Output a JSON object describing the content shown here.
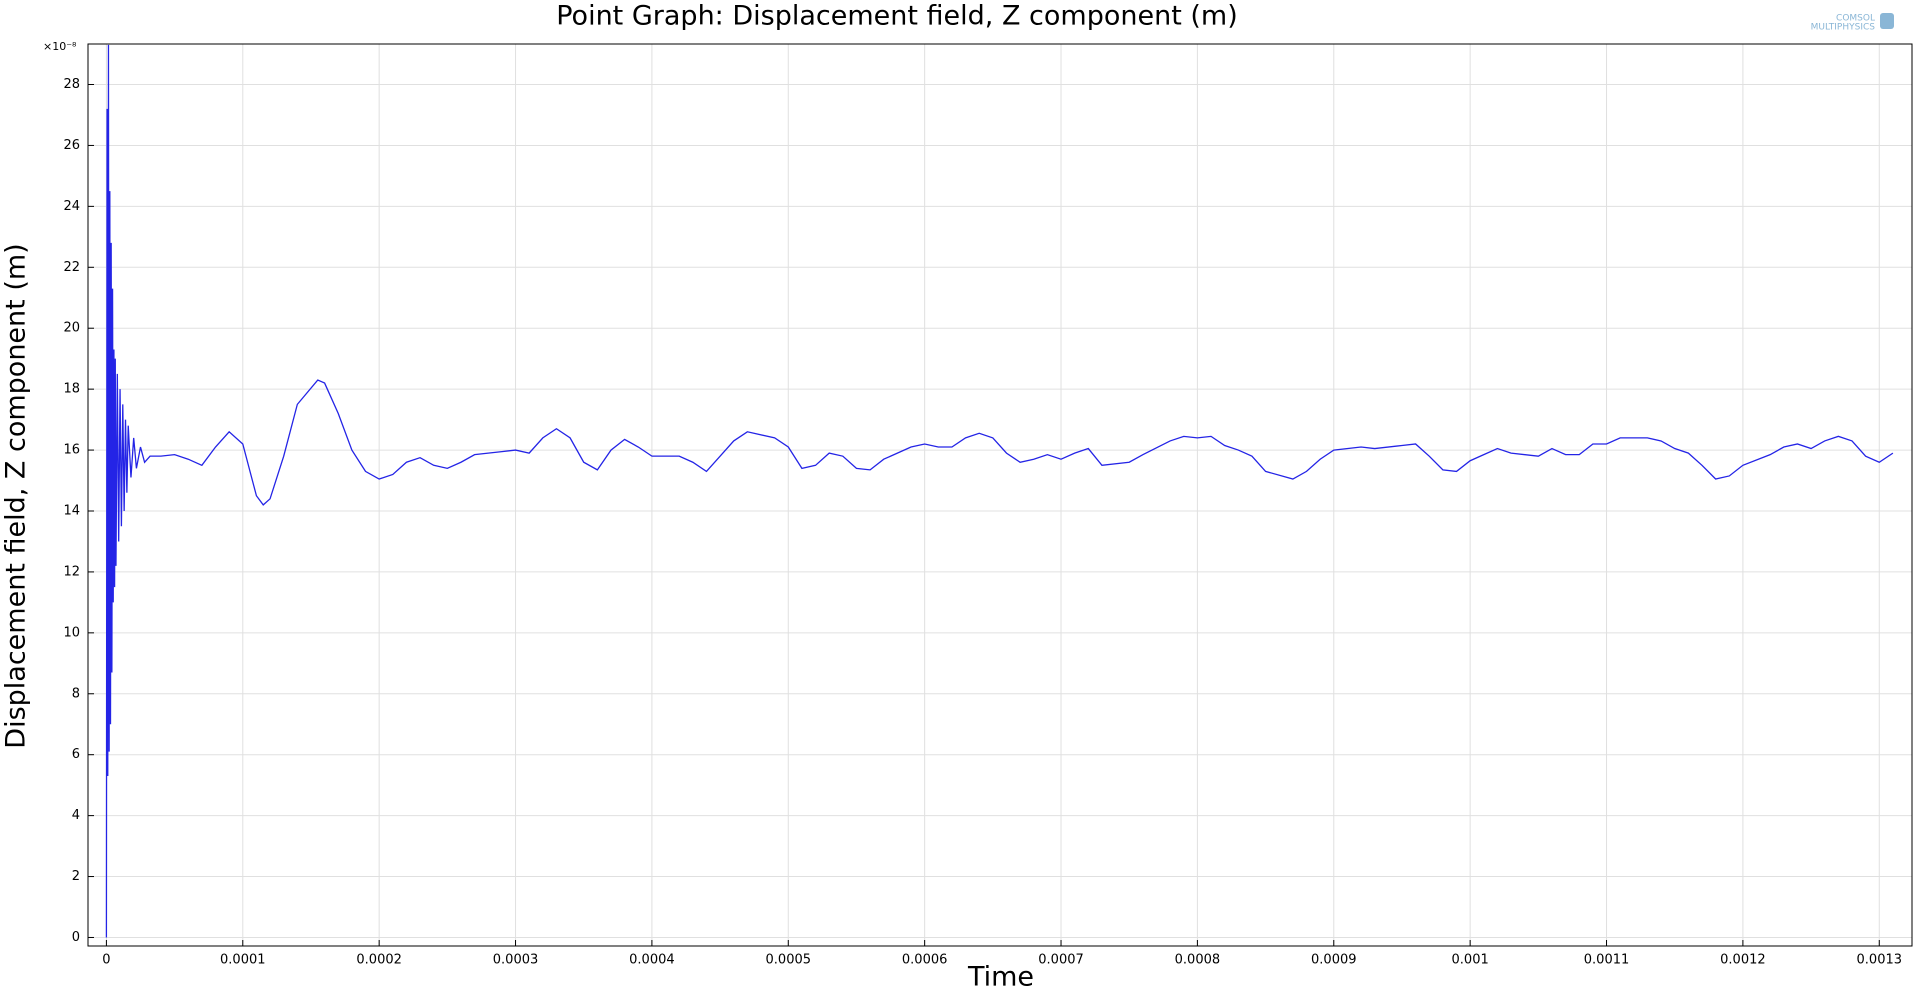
{
  "chart_data": {
    "type": "line",
    "title": "Point Graph: Displacement field, Z component (m)",
    "xlabel": "Time",
    "ylabel": "Displacement field, Z component (m)",
    "y_multiplier": "×10⁻⁸",
    "logo": [
      "COMSOL",
      "MULTIPHYSICS"
    ],
    "grid": true,
    "xlim": [
      -1.35e-05,
      0.001324
    ],
    "ylim": [
      -0.28,
      29.33
    ],
    "xticks": [
      0,
      0.0001,
      0.0002,
      0.0003,
      0.0004,
      0.0005,
      0.0006,
      0.0007,
      0.0008,
      0.0009,
      0.001,
      0.0011,
      0.0012,
      0.0013
    ],
    "yticks": [
      0,
      2,
      4,
      6,
      8,
      10,
      12,
      14,
      16,
      18,
      20,
      22,
      24,
      26,
      28
    ],
    "series": [
      {
        "color": "#2424e6",
        "x": [
          0,
          5e-07,
          1e-06,
          1.5e-06,
          2e-06,
          2.5e-06,
          3e-06,
          3.5e-06,
          4e-06,
          4.5e-06,
          5e-06,
          5.5e-06,
          6e-06,
          6.5e-06,
          7e-06,
          8e-06,
          9e-06,
          1e-05,
          1.1e-05,
          1.2e-05,
          1.3e-05,
          1.4e-05,
          1.5e-05,
          1.6e-05,
          1.8e-05,
          2e-05,
          2.2e-05,
          2.5e-05,
          2.8e-05,
          3.2e-05,
          4e-05,
          5e-05,
          6e-05,
          7e-05,
          8e-05,
          9e-05,
          0.0001,
          0.00011,
          0.000115,
          0.00012,
          0.00013,
          0.00014,
          0.000155,
          0.00016,
          0.00017,
          0.00018,
          0.00019,
          0.0002,
          0.00021,
          0.00022,
          0.00023,
          0.00024,
          0.00025,
          0.00026,
          0.00027,
          0.00029,
          0.0003,
          0.00031,
          0.00032,
          0.00033,
          0.00034,
          0.00035,
          0.00036,
          0.00037,
          0.00038,
          0.00039,
          0.0004,
          0.00042,
          0.00043,
          0.00044,
          0.00045,
          0.00046,
          0.00047,
          0.00049,
          0.0005,
          0.00051,
          0.00052,
          0.00053,
          0.00054,
          0.00055,
          0.00056,
          0.00057,
          0.00059,
          0.0006,
          0.00061,
          0.00062,
          0.00063,
          0.00064,
          0.00065,
          0.00066,
          0.00067,
          0.00068,
          0.00069,
          0.0007,
          0.00071,
          0.00072,
          0.00073,
          0.00075,
          0.00076,
          0.00078,
          0.00079,
          0.0008,
          0.00081,
          0.00082,
          0.00083,
          0.00084,
          0.00085,
          0.00087,
          0.00088,
          0.00089,
          0.0009,
          0.00092,
          0.00093,
          0.00095,
          0.00096,
          0.00097,
          0.00098,
          0.00099,
          0.001,
          0.00101,
          0.00102,
          0.00103,
          0.00105,
          0.00106,
          0.00107,
          0.00108,
          0.00109,
          0.0011,
          0.00111,
          0.00113,
          0.00114,
          0.00115,
          0.00116,
          0.00117,
          0.00118,
          0.00119,
          0.0012,
          0.00122,
          0.00123,
          0.00124,
          0.00125,
          0.00126,
          0.00127,
          0.00128,
          0.00129,
          0.0013,
          0.00131
        ],
        "values": [
          0,
          27.2,
          5.3,
          29.3,
          6.1,
          24.5,
          7,
          22.8,
          8.7,
          21.3,
          11,
          19.3,
          11.5,
          19,
          12.2,
          18.5,
          13,
          18,
          13.5,
          17.5,
          14,
          17,
          14.6,
          16.8,
          15.1,
          16.4,
          15.4,
          16.1,
          15.6,
          15.8,
          15.8,
          15.85,
          15.7,
          15.5,
          16.1,
          16.6,
          16.2,
          14.5,
          14.2,
          14.4,
          15.8,
          17.5,
          18.3,
          18.2,
          17.2,
          16,
          15.3,
          15.05,
          15.2,
          15.6,
          15.75,
          15.5,
          15.4,
          15.6,
          15.85,
          15.95,
          16,
          15.9,
          16.4,
          16.7,
          16.4,
          15.6,
          15.35,
          16,
          16.35,
          16.1,
          15.8,
          15.8,
          15.6,
          15.3,
          15.8,
          16.3,
          16.6,
          16.4,
          16.1,
          15.4,
          15.5,
          15.9,
          15.8,
          15.4,
          15.35,
          15.7,
          16.1,
          16.2,
          16.1,
          16.1,
          16.4,
          16.55,
          16.4,
          15.9,
          15.6,
          15.7,
          15.85,
          15.7,
          15.9,
          16.05,
          15.5,
          15.6,
          15.85,
          16.3,
          16.45,
          16.4,
          16.45,
          16.15,
          16,
          15.8,
          15.3,
          15.05,
          15.3,
          15.7,
          16,
          16.1,
          16.05,
          16.15,
          16.2,
          15.8,
          15.35,
          15.3,
          15.65,
          15.85,
          16.05,
          15.9,
          15.8,
          16.05,
          15.85,
          15.85,
          16.2,
          16.2,
          16.4,
          16.4,
          16.3,
          16.05,
          15.9,
          15.5,
          15.05,
          15.15,
          15.5,
          15.85,
          16.1,
          16.2,
          16.05,
          16.3,
          16.45,
          16.3,
          15.8,
          15.6,
          15.9
        ]
      }
    ]
  }
}
